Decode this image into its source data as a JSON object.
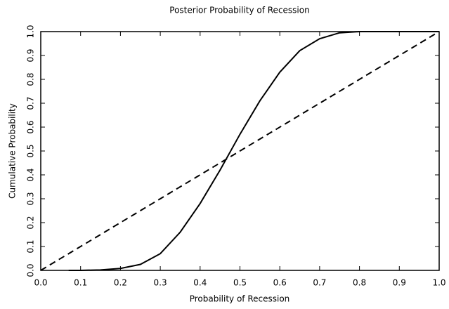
{
  "chart_data": {
    "type": "line",
    "title": "Posterior Probability of Recession",
    "xlabel": "Probability of Recession",
    "ylabel": "Cumulative Probability",
    "xlim": [
      0,
      1
    ],
    "ylim": [
      0,
      1
    ],
    "xticks": [
      {
        "value": 0,
        "label": "0.0"
      },
      0.1,
      0.2,
      0.3,
      0.4,
      0.5,
      0.6,
      0.7,
      0.8,
      0.9,
      {
        "value": 1,
        "label": "1.0"
      }
    ],
    "yticks": [
      {
        "value": 0,
        "label": "0.0"
      },
      0.1,
      0.2,
      0.3,
      0.4,
      0.5,
      0.6,
      0.7,
      0.8,
      0.9,
      {
        "value": 1,
        "label": "1.0"
      }
    ],
    "series": [
      {
        "color": "#000000",
        "dash": "solid",
        "x": [
          0.07,
          0.1,
          0.15,
          0.2,
          0.25,
          0.3,
          0.35,
          0.4,
          0.45,
          0.5,
          0.55,
          0.6,
          0.65,
          0.7,
          0.75,
          0.8,
          0.85,
          0.9,
          0.95,
          1
        ],
        "values": [
          0,
          0,
          0.002,
          0.008,
          0.025,
          0.07,
          0.16,
          0.28,
          0.42,
          0.57,
          0.71,
          0.83,
          0.92,
          0.97,
          0.995,
          1,
          1,
          1,
          1,
          1
        ]
      },
      {
        "color": "#000000",
        "dash": "dashed",
        "x": [
          0,
          1
        ],
        "values": [
          0,
          1
        ]
      }
    ]
  }
}
